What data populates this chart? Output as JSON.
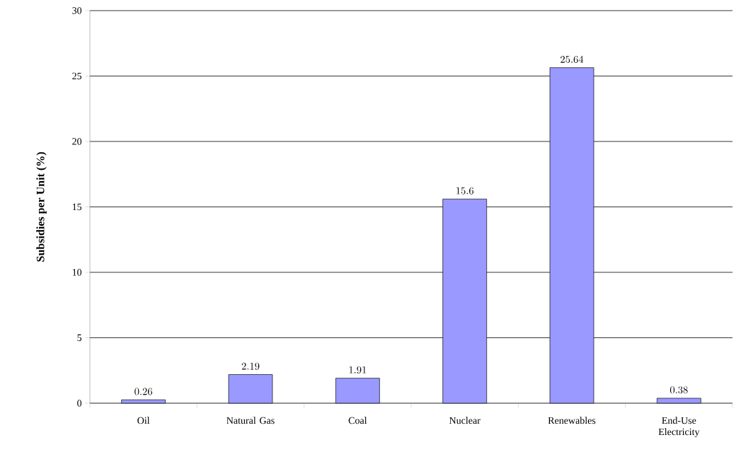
{
  "chart_data": {
    "type": "bar",
    "ylabel": "Subsidies per Unit (%)",
    "categories": [
      "Oil",
      "Natural Gas",
      "Coal",
      "Nuclear",
      "Renewables",
      "End-Use Electricity"
    ],
    "values": [
      0.26,
      2.19,
      1.91,
      15.6,
      25.64,
      0.38
    ],
    "color": "#9999ff",
    "data_labels": true,
    "grid": "y",
    "ylim": [
      0,
      30
    ],
    "yticks": [
      0,
      5,
      10,
      15,
      20,
      25,
      30
    ]
  }
}
